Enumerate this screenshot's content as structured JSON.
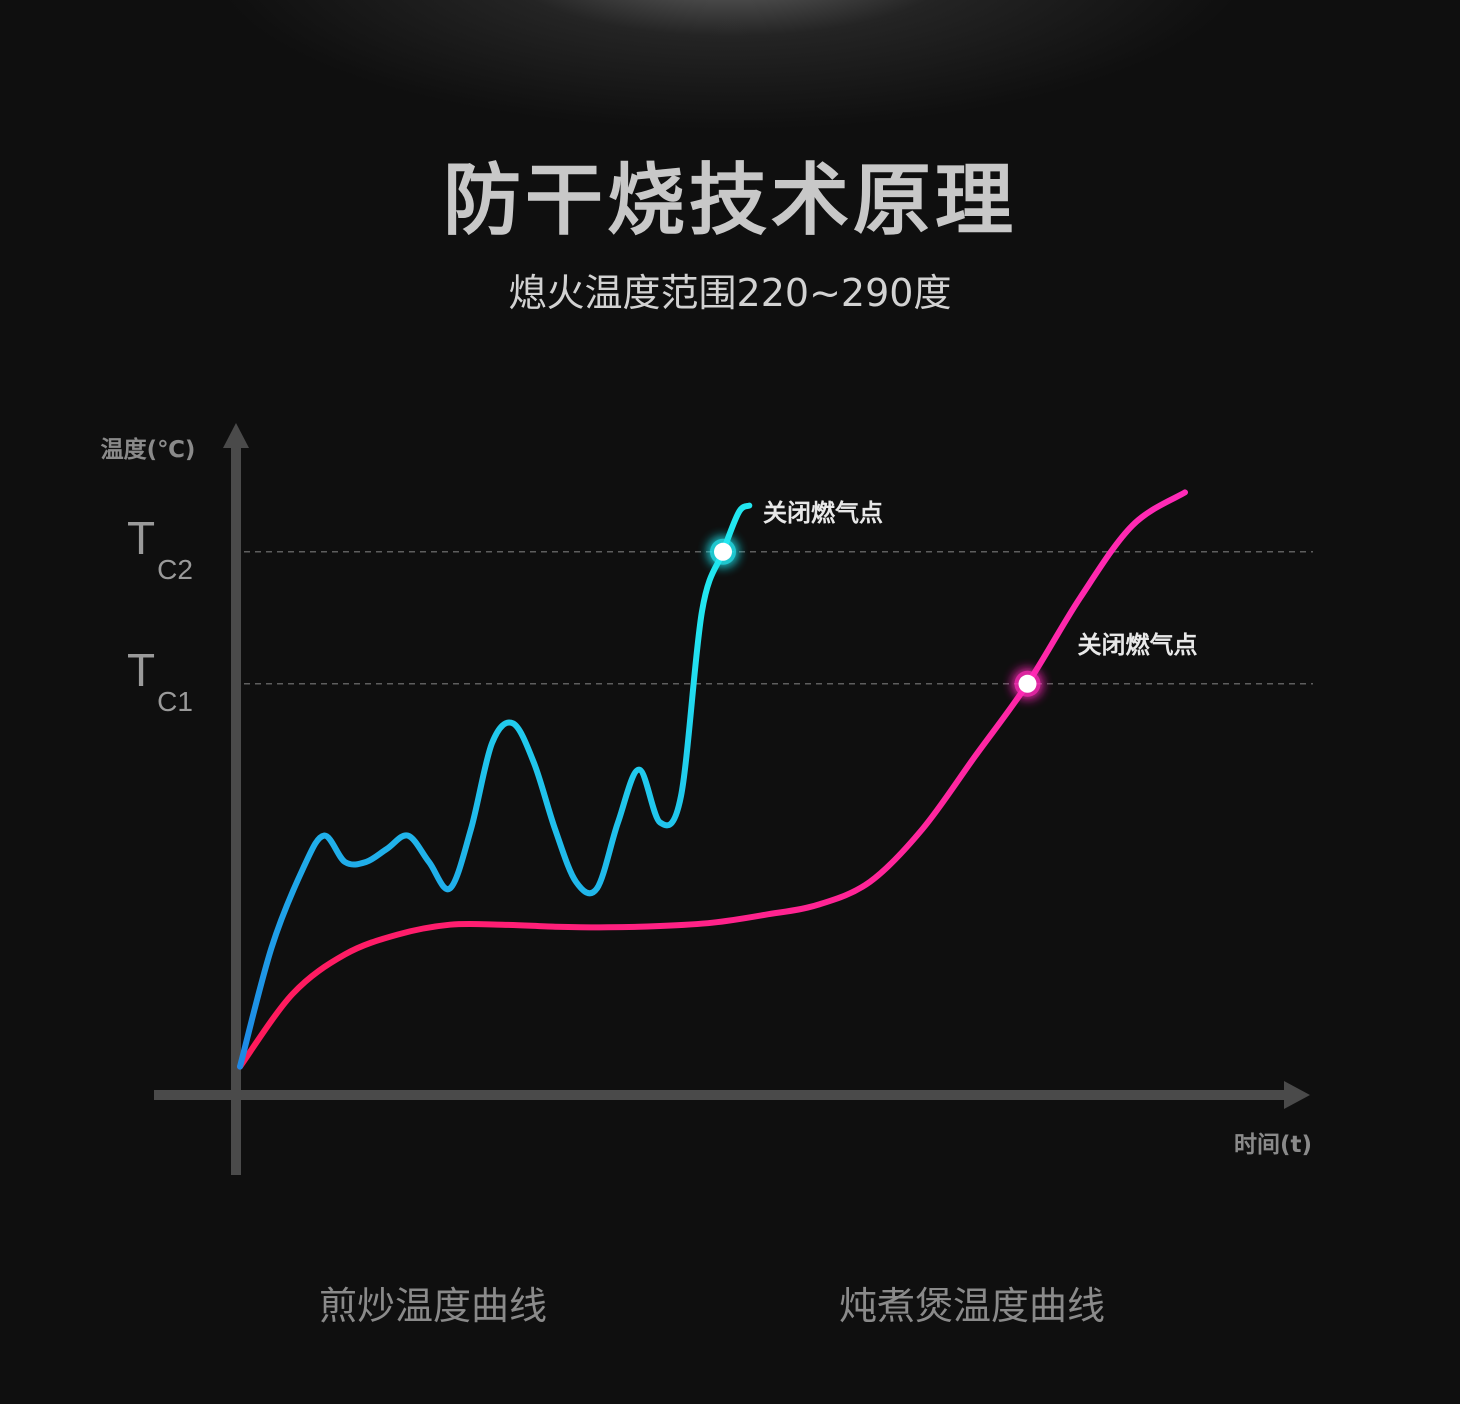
{
  "title": "防干烧技术原理",
  "subtitle": "熄火温度范围220~290度",
  "colors": {
    "background": "#0f0f0f",
    "axis": "#4a4a4a",
    "text": "#c8c8c8",
    "stir_fry_start": "#1e88e5",
    "stir_fry_end": "#22e6f0",
    "stew_start": "#ff1a5a",
    "stew_end": "#ff2ab8"
  },
  "chart_data": {
    "type": "line",
    "xlabel": "时间(t)",
    "ylabel": "温度(℃)",
    "grid": false,
    "legend_placement": "bottom",
    "reference_lines": [
      {
        "main": "T",
        "sub": "C2",
        "y": 82
      },
      {
        "main": "T",
        "sub": "C1",
        "y": 62
      }
    ],
    "series": [
      {
        "name": "煎炒温度曲线",
        "x": [
          0,
          3,
          6,
          8,
          10,
          12,
          14,
          16,
          18,
          20,
          22,
          24,
          26,
          28,
          30,
          32,
          34,
          36,
          38,
          40,
          42,
          44,
          46,
          47.5,
          48.5
        ],
        "y": [
          4,
          22,
          34,
          39,
          35,
          35,
          37,
          39,
          35,
          31,
          40,
          53,
          56,
          50,
          40,
          32,
          31,
          41,
          49,
          41,
          45,
          73,
          82,
          88,
          89
        ],
        "marker": {
          "x": 46,
          "y": 82,
          "label": "关闭燃气点"
        }
      },
      {
        "name": "炖煮煲温度曲线",
        "x": [
          0,
          5,
          10,
          15,
          20,
          25,
          30,
          35,
          40,
          45,
          50,
          55,
          60,
          65,
          70,
          75,
          80,
          85,
          90
        ],
        "y": [
          4,
          15,
          21,
          24,
          25.5,
          25.5,
          25.2,
          25.1,
          25.3,
          25.8,
          27,
          28.5,
          32,
          40,
          51,
          62,
          75,
          86,
          91
        ],
        "marker": {
          "x": 75,
          "y": 62,
          "label": "关闭燃气点"
        }
      }
    ],
    "xlim": [
      0,
      100
    ],
    "ylim": [
      0,
      100
    ]
  }
}
